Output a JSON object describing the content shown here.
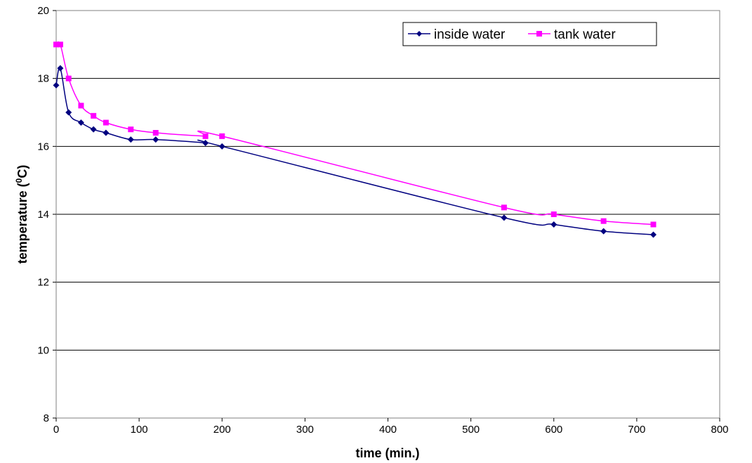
{
  "chart_data": {
    "type": "line",
    "xlabel": "time (min.)",
    "ylabel": {
      "pre": "temperature (",
      "sup": "0",
      "post": "C)"
    },
    "xlim": [
      0,
      800
    ],
    "ylim": [
      8,
      20
    ],
    "x_ticks": [
      0,
      100,
      200,
      300,
      400,
      500,
      600,
      700,
      800
    ],
    "y_ticks": [
      8,
      10,
      12,
      14,
      16,
      18,
      20
    ],
    "grid": "horizontal",
    "legend_position": "top-right",
    "series": [
      {
        "name": "inside water",
        "color": "#000080",
        "marker": "diamond",
        "x": [
          0,
          5,
          15,
          30,
          45,
          60,
          90,
          120,
          180,
          200,
          540,
          600,
          660,
          720
        ],
        "y": [
          17.8,
          18.3,
          17.0,
          16.7,
          16.5,
          16.4,
          16.2,
          16.2,
          16.1,
          16.0,
          13.9,
          13.7,
          13.5,
          13.4
        ]
      },
      {
        "name": "tank water",
        "color": "#FF00FF",
        "marker": "square",
        "x": [
          0,
          5,
          15,
          30,
          45,
          60,
          90,
          120,
          180,
          200,
          540,
          600,
          660,
          720
        ],
        "y": [
          19.0,
          19.0,
          18.0,
          17.2,
          16.9,
          16.7,
          16.5,
          16.4,
          16.3,
          16.3,
          14.2,
          14.0,
          13.8,
          13.7
        ]
      }
    ]
  }
}
